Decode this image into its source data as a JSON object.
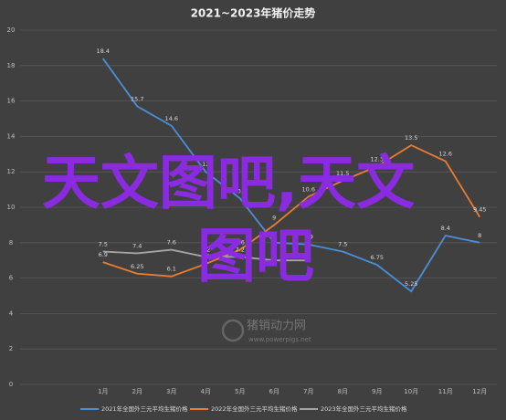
{
  "chart_data": {
    "type": "line",
    "title": "2021~2023年猪价走势",
    "categories": [
      "1月",
      "2月",
      "3月",
      "4月",
      "5月",
      "6月",
      "7月",
      "8月",
      "9月",
      "10月",
      "11月",
      "12月"
    ],
    "series": [
      {
        "name": "2021年全国外三元平均生猪价格",
        "color": "#4a8fd6",
        "values": [
          18.4,
          15.7,
          14.6,
          12,
          10.5,
          8,
          7.9,
          7.5,
          6.75,
          5.25,
          8.4,
          8
        ]
      },
      {
        "name": "2022年全国外三元平均生猪价格",
        "color": "#ed7d31",
        "values": [
          6.9,
          6.25,
          6.1,
          6.8,
          7.6,
          9,
          10.6,
          11.5,
          12.3,
          13.5,
          12.6,
          9.45
        ]
      },
      {
        "name": "2023年全国外三元平均生猪价格",
        "color": "#a5a5a5",
        "values": [
          7.5,
          7.4,
          7.6,
          7.2,
          7.2,
          7,
          7,
          null,
          null,
          null,
          null,
          null
        ]
      }
    ],
    "ylim": [
      0,
      20
    ],
    "yticks": [
      0,
      2,
      4,
      6,
      8,
      10,
      12,
      14,
      16,
      18,
      20
    ],
    "grid": true,
    "annotations": [
      "天文图吧,天文",
      "图吧",
      "猪销动力网",
      "www.powerpigs.net"
    ]
  }
}
